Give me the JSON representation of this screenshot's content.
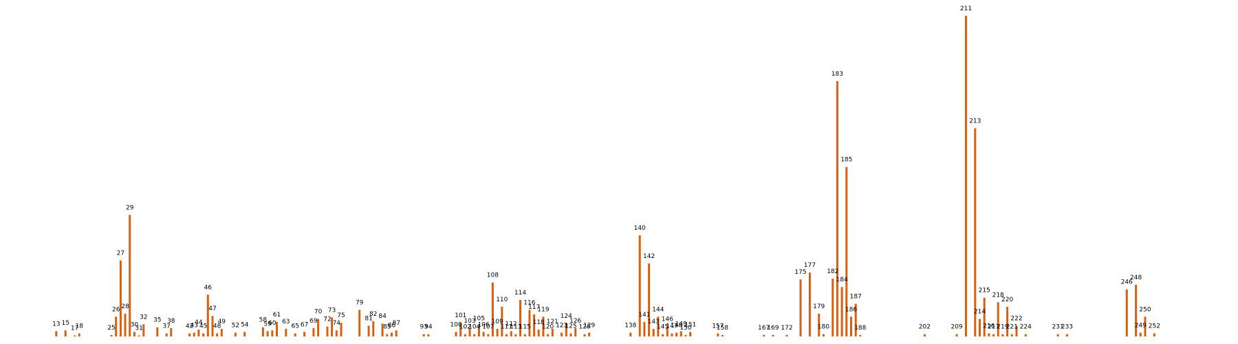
{
  "chart_data": {
    "type": "bar",
    "title": "",
    "xlabel": "",
    "ylabel": "",
    "bar_color": "#d95f0e",
    "label_color": "#000000",
    "background": "#ffffff",
    "axes_visible": false,
    "grid": false,
    "legend": "none",
    "ylim": [
      0,
      211
    ],
    "xlim": [
      0,
      265
    ],
    "points": [
      {
        "x": 13,
        "v": 3.5,
        "label": "13"
      },
      {
        "x": 15,
        "v": 4,
        "label": "15"
      },
      {
        "x": 17,
        "v": 0.7,
        "label": "17"
      },
      {
        "x": 18,
        "v": 2,
        "label": "18"
      },
      {
        "x": 25,
        "v": 1,
        "label": "25"
      },
      {
        "x": 26,
        "v": 13,
        "label": "26"
      },
      {
        "x": 27,
        "v": 50,
        "label": "27"
      },
      {
        "x": 28,
        "v": 15,
        "label": "28"
      },
      {
        "x": 29,
        "v": 80,
        "label": "29"
      },
      {
        "x": 30,
        "v": 3,
        "label": "30"
      },
      {
        "x": 31,
        "v": 0.7,
        "label": "31"
      },
      {
        "x": 32,
        "v": 8,
        "label": "32"
      },
      {
        "x": 35,
        "v": 6,
        "label": "35"
      },
      {
        "x": 37,
        "v": 2,
        "label": "37"
      },
      {
        "x": 38,
        "v": 5.5,
        "label": "38"
      },
      {
        "x": 42,
        "v": 2,
        "label": "42"
      },
      {
        "x": 43,
        "v": 2.5,
        "label": "43"
      },
      {
        "x": 44,
        "v": 4.5,
        "label": "44"
      },
      {
        "x": 45,
        "v": 2,
        "label": "45"
      },
      {
        "x": 46,
        "v": 27.5,
        "label": "46"
      },
      {
        "x": 47,
        "v": 13.5,
        "label": "47"
      },
      {
        "x": 48,
        "v": 2,
        "label": "48"
      },
      {
        "x": 49,
        "v": 5,
        "label": "49"
      },
      {
        "x": 52,
        "v": 2.5,
        "label": "52"
      },
      {
        "x": 54,
        "v": 3,
        "label": "54"
      },
      {
        "x": 58,
        "v": 6,
        "label": "58"
      },
      {
        "x": 59,
        "v": 3.5,
        "label": "59"
      },
      {
        "x": 60,
        "v": 4,
        "label": "60"
      },
      {
        "x": 61,
        "v": 9.5,
        "label": "61"
      },
      {
        "x": 63,
        "v": 5,
        "label": "63"
      },
      {
        "x": 65,
        "v": 2,
        "label": "65"
      },
      {
        "x": 67,
        "v": 3,
        "label": "67"
      },
      {
        "x": 69,
        "v": 5.5,
        "label": "69"
      },
      {
        "x": 70,
        "v": 11.5,
        "label": "70"
      },
      {
        "x": 72,
        "v": 6.5,
        "label": "72"
      },
      {
        "x": 73,
        "v": 12.5,
        "label": "73"
      },
      {
        "x": 74,
        "v": 4,
        "label": "74"
      },
      {
        "x": 75,
        "v": 9,
        "label": "75"
      },
      {
        "x": 79,
        "v": 17.5,
        "label": "79"
      },
      {
        "x": 81,
        "v": 7,
        "label": "81"
      },
      {
        "x": 82,
        "v": 10,
        "label": "82"
      },
      {
        "x": 84,
        "v": 8.5,
        "label": "84"
      },
      {
        "x": 85,
        "v": 1.5,
        "label": "85"
      },
      {
        "x": 86,
        "v": 2.5,
        "label": "86"
      },
      {
        "x": 87,
        "v": 4,
        "label": "87"
      },
      {
        "x": 93,
        "v": 1.5,
        "label": "93"
      },
      {
        "x": 94,
        "v": 1.5,
        "label": "94"
      },
      {
        "x": 100,
        "v": 3,
        "label": "100"
      },
      {
        "x": 101,
        "v": 9,
        "label": "101"
      },
      {
        "x": 102,
        "v": 1.5,
        "label": "102"
      },
      {
        "x": 103,
        "v": 5.5,
        "label": "103"
      },
      {
        "x": 104,
        "v": 1.5,
        "label": "104"
      },
      {
        "x": 105,
        "v": 7,
        "label": "105"
      },
      {
        "x": 106,
        "v": 3,
        "label": "106"
      },
      {
        "x": 107,
        "v": 1.5,
        "label": "107"
      },
      {
        "x": 108,
        "v": 35.5,
        "label": "108"
      },
      {
        "x": 109,
        "v": 5,
        "label": "109"
      },
      {
        "x": 110,
        "v": 19.5,
        "label": "110"
      },
      {
        "x": 111,
        "v": 1.5,
        "label": "111"
      },
      {
        "x": 112,
        "v": 3.5,
        "label": "112"
      },
      {
        "x": 113,
        "v": 1.5,
        "label": "113"
      },
      {
        "x": 114,
        "v": 24,
        "label": "114"
      },
      {
        "x": 115,
        "v": 1.5,
        "label": "115"
      },
      {
        "x": 116,
        "v": 17.5,
        "label": "116"
      },
      {
        "x": 117,
        "v": 14.5,
        "label": "117"
      },
      {
        "x": 118,
        "v": 4.5,
        "label": "118"
      },
      {
        "x": 119,
        "v": 13,
        "label": "119"
      },
      {
        "x": 120,
        "v": 1.5,
        "label": "120"
      },
      {
        "x": 121,
        "v": 5,
        "label": "121"
      },
      {
        "x": 123,
        "v": 2.5,
        "label": "123"
      },
      {
        "x": 124,
        "v": 8.5,
        "label": "124"
      },
      {
        "x": 125,
        "v": 2,
        "label": "125"
      },
      {
        "x": 126,
        "v": 5.5,
        "label": "126"
      },
      {
        "x": 128,
        "v": 1.5,
        "label": "128"
      },
      {
        "x": 129,
        "v": 2.5,
        "label": "129"
      },
      {
        "x": 138,
        "v": 2.5,
        "label": "138"
      },
      {
        "x": 140,
        "v": 66.5,
        "label": "140"
      },
      {
        "x": 141,
        "v": 9.5,
        "label": "141"
      },
      {
        "x": 142,
        "v": 48,
        "label": "142"
      },
      {
        "x": 143,
        "v": 5,
        "label": "143"
      },
      {
        "x": 144,
        "v": 13,
        "label": "144"
      },
      {
        "x": 145,
        "v": 1.5,
        "label": "145"
      },
      {
        "x": 146,
        "v": 6.5,
        "label": "146"
      },
      {
        "x": 147,
        "v": 2,
        "label": "147"
      },
      {
        "x": 148,
        "v": 2.5,
        "label": "148"
      },
      {
        "x": 149,
        "v": 3.5,
        "label": "149"
      },
      {
        "x": 150,
        "v": 1,
        "label": "150"
      },
      {
        "x": 151,
        "v": 3,
        "label": "151"
      },
      {
        "x": 157,
        "v": 2,
        "label": "157"
      },
      {
        "x": 158,
        "v": 1,
        "label": "158"
      },
      {
        "x": 167,
        "v": 1,
        "label": "167"
      },
      {
        "x": 169,
        "v": 1,
        "label": "169"
      },
      {
        "x": 172,
        "v": 1,
        "label": "172"
      },
      {
        "x": 175,
        "v": 37.5,
        "label": "175"
      },
      {
        "x": 177,
        "v": 42,
        "label": "177"
      },
      {
        "x": 179,
        "v": 15,
        "label": "179"
      },
      {
        "x": 180,
        "v": 1.5,
        "label": "180"
      },
      {
        "x": 182,
        "v": 38,
        "label": "182"
      },
      {
        "x": 183,
        "v": 168,
        "label": "183"
      },
      {
        "x": 184,
        "v": 32.5,
        "label": "184"
      },
      {
        "x": 185,
        "v": 111.5,
        "label": "185"
      },
      {
        "x": 186,
        "v": 13,
        "label": "186"
      },
      {
        "x": 187,
        "v": 21.5,
        "label": "187"
      },
      {
        "x": 188,
        "v": 1,
        "label": "188"
      },
      {
        "x": 202,
        "v": 1.5,
        "label": "202"
      },
      {
        "x": 209,
        "v": 1.5,
        "label": "209"
      },
      {
        "x": 211,
        "v": 211,
        "label": "211"
      },
      {
        "x": 213,
        "v": 137,
        "label": "213"
      },
      {
        "x": 214,
        "v": 11.5,
        "label": "214"
      },
      {
        "x": 215,
        "v": 25.5,
        "label": "215"
      },
      {
        "x": 216,
        "v": 2,
        "label": "216"
      },
      {
        "x": 217,
        "v": 1.5,
        "label": "217"
      },
      {
        "x": 218,
        "v": 22.5,
        "label": "218"
      },
      {
        "x": 219,
        "v": 1.5,
        "label": "219"
      },
      {
        "x": 220,
        "v": 19.5,
        "label": "220"
      },
      {
        "x": 221,
        "v": 1.5,
        "label": "221"
      },
      {
        "x": 222,
        "v": 7,
        "label": "222"
      },
      {
        "x": 224,
        "v": 1.5,
        "label": "224"
      },
      {
        "x": 231,
        "v": 1.5,
        "label": "231"
      },
      {
        "x": 233,
        "v": 1.5,
        "label": "233"
      },
      {
        "x": 246,
        "v": 31,
        "label": "246"
      },
      {
        "x": 248,
        "v": 34,
        "label": "248"
      },
      {
        "x": 249,
        "v": 2.5,
        "label": "249"
      },
      {
        "x": 250,
        "v": 13,
        "label": "250"
      },
      {
        "x": 252,
        "v": 2,
        "label": "252"
      }
    ]
  }
}
